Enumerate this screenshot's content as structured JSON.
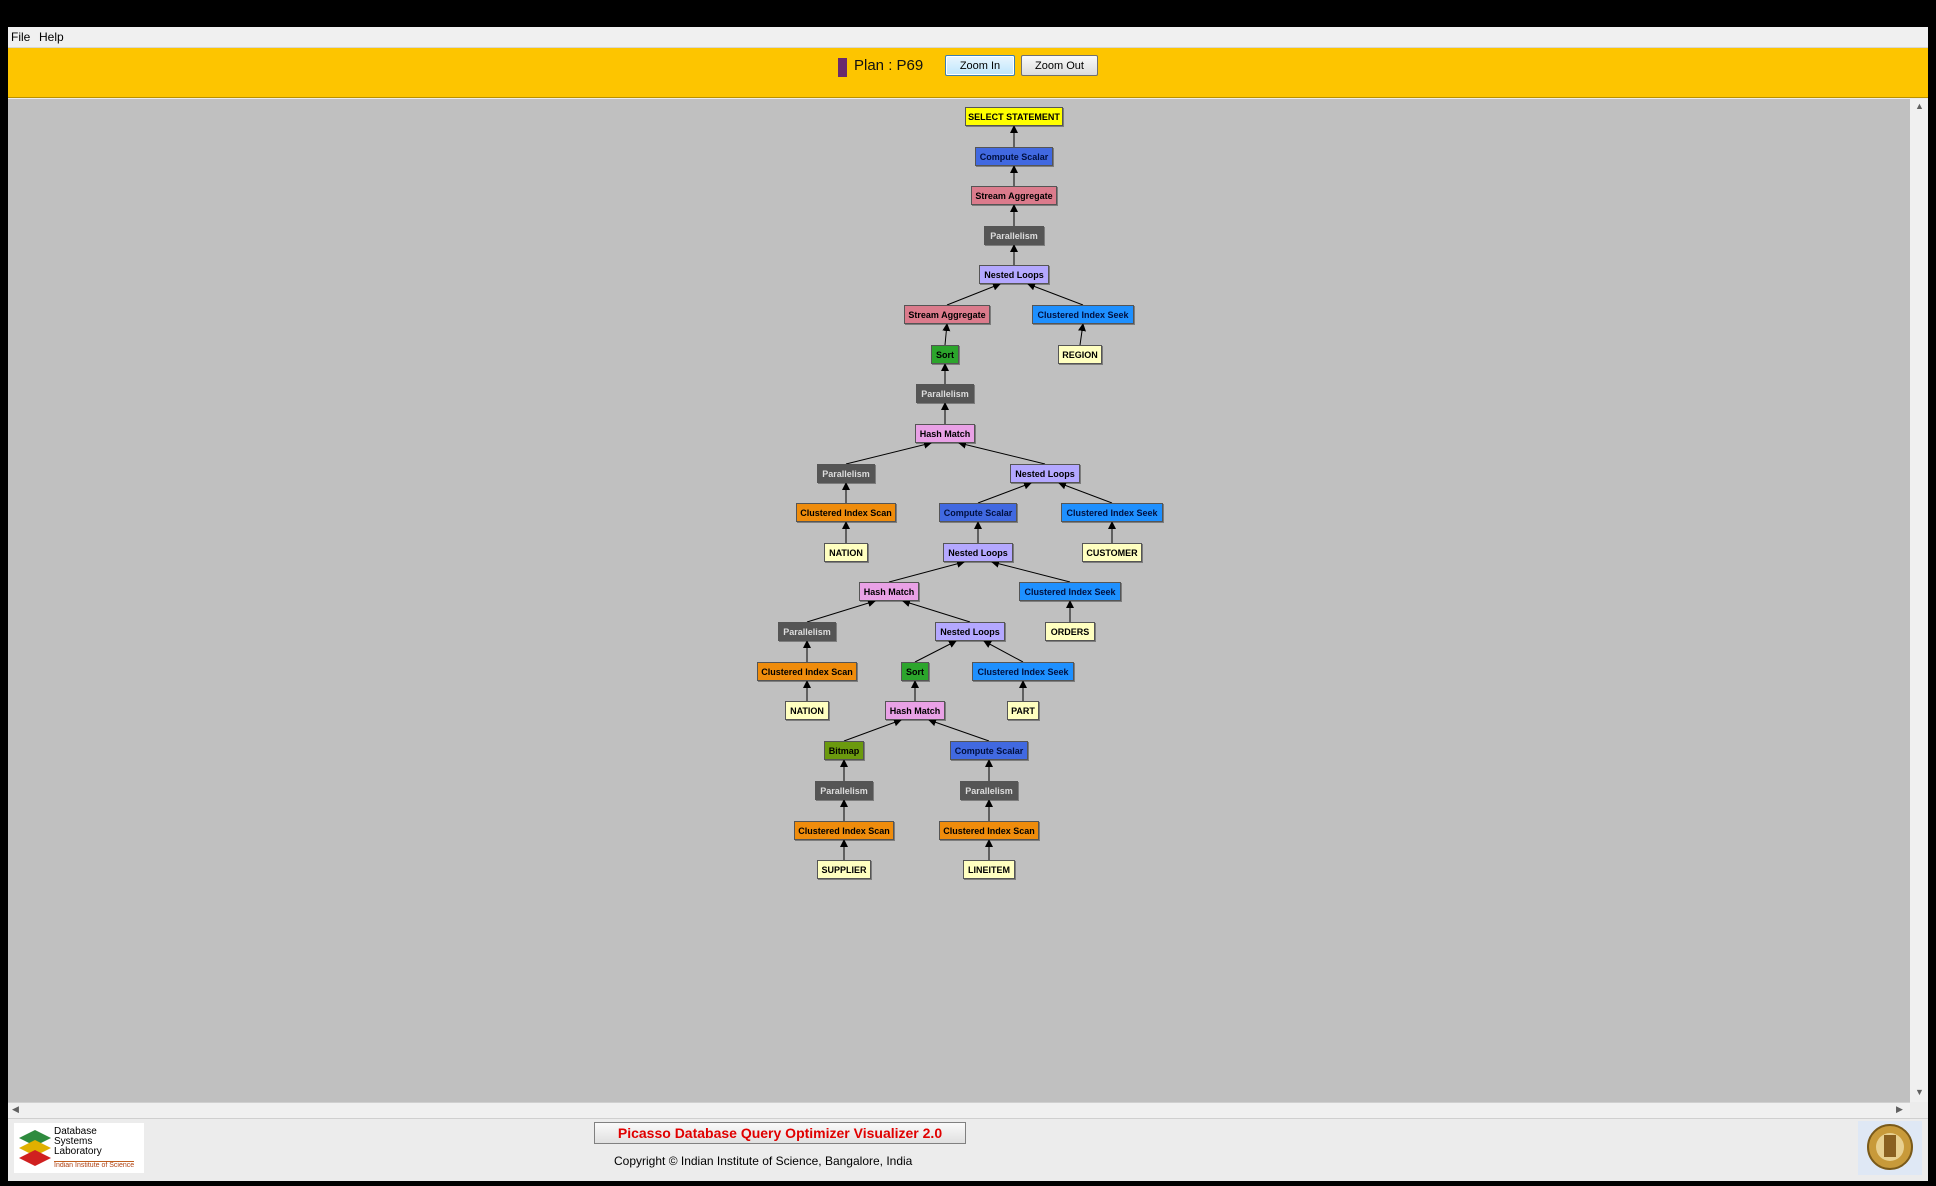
{
  "menu": {
    "file": "File",
    "help": "Help"
  },
  "toolbar": {
    "plan_label": "Plan : P69",
    "zoom_in": "Zoom In",
    "zoom_out": "Zoom Out",
    "plan_color": "#6a2a6e"
  },
  "footer": {
    "title": "Picasso Database Query Optimizer Visualizer 2.0",
    "copyright": "Copyright © Indian Institute of Science, Bangalore, India",
    "logo_lines": [
      "Database",
      "Systems",
      "Laboratory"
    ],
    "logo_sub": "Indian Institute of Science"
  },
  "node_colors": {
    "select": "#ffff00",
    "compute": "#4169e1",
    "stream": "#db7b8c",
    "parallel": "#555555",
    "nested": "#b4a8ff",
    "seek": "#1e90ff",
    "table": "#ffffc0",
    "sort": "#2ca52c",
    "hash": "#e9a1e6",
    "scan": "#ef8c0c",
    "bitmap": "#6b9a0e"
  },
  "plan_tree": {
    "nodes": [
      {
        "id": 1,
        "label": "SELECT STATEMENT",
        "kind": "select"
      },
      {
        "id": 2,
        "label": "Compute Scalar",
        "kind": "compute"
      },
      {
        "id": 3,
        "label": "Stream Aggregate",
        "kind": "stream"
      },
      {
        "id": 4,
        "label": "Parallelism",
        "kind": "parallel"
      },
      {
        "id": 5,
        "label": "Nested Loops",
        "kind": "nested"
      },
      {
        "id": 6,
        "label": "Stream Aggregate",
        "kind": "stream"
      },
      {
        "id": 7,
        "label": "Clustered Index Seek",
        "kind": "seek"
      },
      {
        "id": 8,
        "label": "REGION",
        "kind": "table"
      },
      {
        "id": 9,
        "label": "Sort",
        "kind": "sort"
      },
      {
        "id": 10,
        "label": "Parallelism",
        "kind": "parallel"
      },
      {
        "id": 11,
        "label": "Hash Match",
        "kind": "hash"
      },
      {
        "id": 12,
        "label": "Parallelism",
        "kind": "parallel"
      },
      {
        "id": 13,
        "label": "Nested Loops",
        "kind": "nested"
      },
      {
        "id": 14,
        "label": "Clustered Index Scan",
        "kind": "scan"
      },
      {
        "id": 15,
        "label": "NATION",
        "kind": "table"
      },
      {
        "id": 16,
        "label": "Compute Scalar",
        "kind": "compute"
      },
      {
        "id": 17,
        "label": "Clustered Index Seek",
        "kind": "seek"
      },
      {
        "id": 18,
        "label": "CUSTOMER",
        "kind": "table"
      },
      {
        "id": 19,
        "label": "Nested Loops",
        "kind": "nested"
      },
      {
        "id": 20,
        "label": "Hash Match",
        "kind": "hash"
      },
      {
        "id": 21,
        "label": "Clustered Index Seek",
        "kind": "seek"
      },
      {
        "id": 22,
        "label": "ORDERS",
        "kind": "table"
      },
      {
        "id": 23,
        "label": "Parallelism",
        "kind": "parallel"
      },
      {
        "id": 24,
        "label": "Nested Loops",
        "kind": "nested"
      },
      {
        "id": 25,
        "label": "Clustered Index Scan",
        "kind": "scan"
      },
      {
        "id": 26,
        "label": "NATION",
        "kind": "table"
      },
      {
        "id": 27,
        "label": "Sort",
        "kind": "sort"
      },
      {
        "id": 28,
        "label": "Clustered Index Seek",
        "kind": "seek"
      },
      {
        "id": 29,
        "label": "PART",
        "kind": "table"
      },
      {
        "id": 30,
        "label": "Hash Match",
        "kind": "hash"
      },
      {
        "id": 31,
        "label": "Bitmap",
        "kind": "bitmap"
      },
      {
        "id": 32,
        "label": "Compute Scalar",
        "kind": "compute"
      },
      {
        "id": 33,
        "label": "Parallelism",
        "kind": "parallel"
      },
      {
        "id": 34,
        "label": "Parallelism",
        "kind": "parallel"
      },
      {
        "id": 35,
        "label": "Clustered Index Scan",
        "kind": "scan"
      },
      {
        "id": 36,
        "label": "Clustered Index Scan",
        "kind": "scan"
      },
      {
        "id": 37,
        "label": "SUPPLIER",
        "kind": "table"
      },
      {
        "id": 38,
        "label": "LINEITEM",
        "kind": "table"
      }
    ],
    "edges": [
      [
        2,
        1
      ],
      [
        3,
        2
      ],
      [
        4,
        3
      ],
      [
        5,
        4
      ],
      [
        6,
        5
      ],
      [
        7,
        5
      ],
      [
        8,
        7
      ],
      [
        9,
        6
      ],
      [
        10,
        9
      ],
      [
        11,
        10
      ],
      [
        12,
        11
      ],
      [
        13,
        11
      ],
      [
        14,
        12
      ],
      [
        15,
        14
      ],
      [
        16,
        13
      ],
      [
        17,
        13
      ],
      [
        18,
        17
      ],
      [
        19,
        16
      ],
      [
        20,
        19
      ],
      [
        21,
        19
      ],
      [
        22,
        21
      ],
      [
        23,
        20
      ],
      [
        24,
        20
      ],
      [
        25,
        23
      ],
      [
        26,
        25
      ],
      [
        27,
        24
      ],
      [
        28,
        24
      ],
      [
        29,
        28
      ],
      [
        30,
        27
      ],
      [
        31,
        30
      ],
      [
        32,
        30
      ],
      [
        33,
        31
      ],
      [
        34,
        32
      ],
      [
        35,
        33
      ],
      [
        36,
        34
      ],
      [
        37,
        35
      ],
      [
        38,
        36
      ]
    ]
  }
}
